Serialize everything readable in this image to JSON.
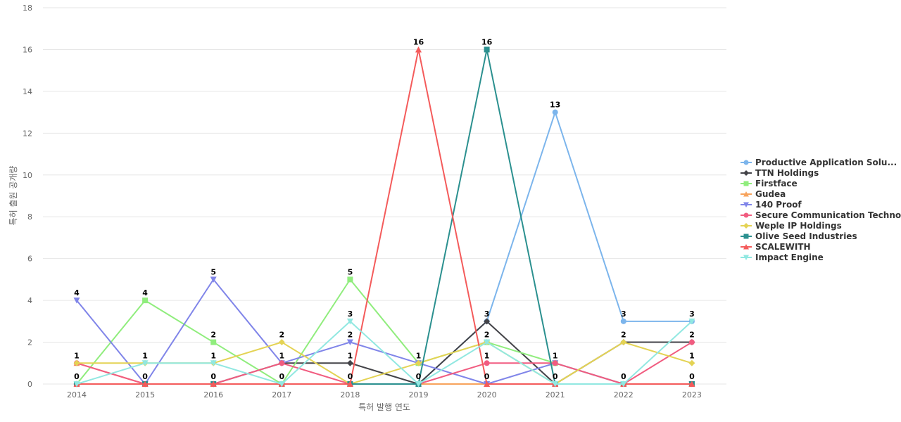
{
  "chart_data": {
    "type": "line",
    "title": "",
    "xlabel": "특허 발행 연도",
    "ylabel": "특허 출원 공개량",
    "ylim": [
      0,
      18
    ],
    "yticks": [
      0,
      2,
      4,
      6,
      8,
      10,
      12,
      14,
      16,
      18
    ],
    "grid": true,
    "legend_position": "right",
    "categories": [
      "2014",
      "2015",
      "2016",
      "2017",
      "2018",
      "2019",
      "2020",
      "2021",
      "2022",
      "2023"
    ],
    "series": [
      {
        "name": "Productive Application Solu...",
        "color": "#7cb5ec",
        "marker": "circle",
        "values": [
          0,
          0,
          0,
          0,
          0,
          0,
          3,
          13,
          3,
          3
        ]
      },
      {
        "name": "TTN Holdings",
        "color": "#434348",
        "marker": "diamond",
        "values": [
          0,
          0,
          0,
          1,
          1,
          0,
          3,
          0,
          2,
          2
        ]
      },
      {
        "name": "Firstface",
        "color": "#90ed7d",
        "marker": "square",
        "values": [
          0,
          4,
          2,
          0,
          5,
          1,
          2,
          1,
          0,
          0
        ]
      },
      {
        "name": "Gudea",
        "color": "#f7a35c",
        "marker": "triangle",
        "values": [
          1,
          0,
          0,
          0,
          0,
          0,
          0,
          0,
          0,
          0
        ]
      },
      {
        "name": "140 Proof",
        "color": "#8085e9",
        "marker": "triangle-down",
        "values": [
          4,
          0,
          5,
          1,
          2,
          1,
          0,
          1,
          0,
          0
        ]
      },
      {
        "name": "Secure Communication Techno...",
        "color": "#f15c80",
        "marker": "circle",
        "values": [
          1,
          0,
          0,
          1,
          0,
          0,
          1,
          1,
          0,
          2
        ]
      },
      {
        "name": "Weple IP Holdings",
        "color": "#e4d354",
        "marker": "diamond",
        "values": [
          1,
          1,
          1,
          2,
          0,
          1,
          2,
          0,
          2,
          1
        ]
      },
      {
        "name": "Olive Seed Industries",
        "color": "#2b908f",
        "marker": "square",
        "values": [
          0,
          0,
          0,
          0,
          0,
          0,
          16,
          0,
          0,
          0
        ]
      },
      {
        "name": "SCALEWITH",
        "color": "#f45b5b",
        "marker": "triangle",
        "values": [
          0,
          0,
          0,
          0,
          0,
          16,
          0,
          0,
          0,
          0
        ]
      },
      {
        "name": "Impact Engine",
        "color": "#91e8e1",
        "marker": "triangle-down",
        "values": [
          0,
          1,
          1,
          0,
          3,
          0,
          2,
          0,
          0,
          3
        ]
      }
    ],
    "data_labels": [
      {
        "category": "2014",
        "values": [
          "4",
          "1",
          "0"
        ]
      },
      {
        "category": "2015",
        "values": [
          "4",
          "1",
          "0"
        ]
      },
      {
        "category": "2016",
        "values": [
          "5",
          "2",
          "1",
          "0"
        ]
      },
      {
        "category": "2017",
        "values": [
          "2",
          "1",
          "0"
        ]
      },
      {
        "category": "2018",
        "values": [
          "5",
          "3",
          "2",
          "1",
          "0"
        ]
      },
      {
        "category": "2019",
        "values": [
          "16",
          "1",
          "0"
        ]
      },
      {
        "category": "2020",
        "values": [
          "16",
          "3",
          "2",
          "1",
          "0"
        ]
      },
      {
        "category": "2021",
        "values": [
          "13",
          "1",
          "0"
        ]
      },
      {
        "category": "2022",
        "values": [
          "3",
          "2",
          "0"
        ]
      },
      {
        "category": "2023",
        "values": [
          "3",
          "2",
          "1",
          "0"
        ]
      }
    ]
  }
}
